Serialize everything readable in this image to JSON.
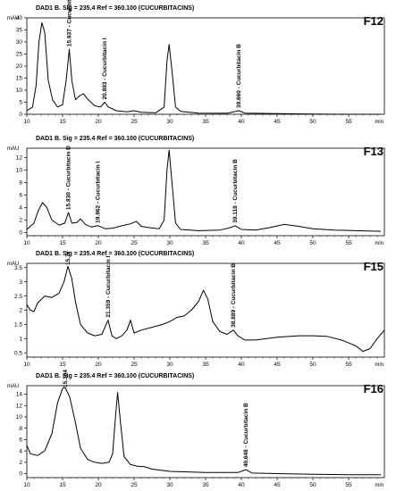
{
  "chart_data": [
    {
      "type": "line",
      "label": "F12",
      "header": "DAD1 B. Sig = 235.4   Ref = 360.100  (CUCURBITACINS)",
      "ylabel": "mAU",
      "xlabel": "min",
      "xlim": [
        10,
        60
      ],
      "ylim": [
        0,
        40
      ],
      "yticks": [
        0,
        5,
        10,
        15,
        20,
        25,
        30,
        35,
        40
      ],
      "xticks": [
        10,
        15,
        20,
        25,
        30,
        35,
        40,
        45,
        50,
        55
      ],
      "annotations": [
        {
          "x": 15.937,
          "y": 27,
          "text": "15.937 - Cucurbitacin D"
        },
        {
          "x": 20.893,
          "y": 5,
          "text": "20.893 - Cucurbitacin I"
        },
        {
          "x": 39.66,
          "y": 1.5,
          "text": "39.660 - Cucurbitacin B"
        }
      ],
      "series": [
        {
          "points": [
            [
              10,
              1.5
            ],
            [
              10.8,
              3
            ],
            [
              11.3,
              12
            ],
            [
              11.7,
              30
            ],
            [
              12.1,
              38
            ],
            [
              12.5,
              34
            ],
            [
              13,
              14
            ],
            [
              13.6,
              6
            ],
            [
              14.3,
              3
            ],
            [
              15,
              4
            ],
            [
              15.5,
              14
            ],
            [
              15.937,
              27
            ],
            [
              16.3,
              14
            ],
            [
              16.8,
              6
            ],
            [
              17.3,
              7.5
            ],
            [
              17.9,
              8.5
            ],
            [
              18.6,
              6
            ],
            [
              19.5,
              3.5
            ],
            [
              20.3,
              3
            ],
            [
              20.893,
              5
            ],
            [
              21.4,
              3
            ],
            [
              22.5,
              1.5
            ],
            [
              24,
              1
            ],
            [
              25,
              1.5
            ],
            [
              26,
              0.8
            ],
            [
              28,
              0.6
            ],
            [
              29.2,
              3
            ],
            [
              29.6,
              22
            ],
            [
              29.9,
              29
            ],
            [
              30.3,
              18
            ],
            [
              30.8,
              3
            ],
            [
              31.5,
              1.2
            ],
            [
              34,
              0.5
            ],
            [
              38,
              0.4
            ],
            [
              39.66,
              1.5
            ],
            [
              40.5,
              0.5
            ],
            [
              45,
              0.3
            ],
            [
              50,
              0.1
            ],
            [
              55,
              0
            ],
            [
              59.5,
              -0.1
            ]
          ]
        }
      ]
    },
    {
      "type": "line",
      "label": "F13",
      "header": "DAD1 B. Sig = 235.4   Ref = 360.100  (CUCURBITACINS)",
      "ylabel": "mAU",
      "xlabel": "min",
      "xlim": [
        10,
        60
      ],
      "ylim": [
        -0.5,
        13.5
      ],
      "yticks": [
        0,
        2,
        4,
        6,
        8,
        10,
        12
      ],
      "xticks": [
        10,
        15,
        20,
        25,
        30,
        35,
        40,
        45,
        50,
        55
      ],
      "annotations": [
        {
          "x": 15.83,
          "y": 3.2,
          "text": "15.830 - Cucurbitacin D"
        },
        {
          "x": 19.962,
          "y": 1.1,
          "text": "19.962 - Cucurbitacin I"
        },
        {
          "x": 39.118,
          "y": 1.1,
          "text": "39.118 - Cucurbitacin B"
        }
      ],
      "series": [
        {
          "points": [
            [
              10,
              0.5
            ],
            [
              11,
              1.5
            ],
            [
              11.6,
              3.5
            ],
            [
              12.2,
              4.8
            ],
            [
              12.8,
              4
            ],
            [
              13.5,
              2
            ],
            [
              14.5,
              1.2
            ],
            [
              15.3,
              1.5
            ],
            [
              15.83,
              3.2
            ],
            [
              16.3,
              1.5
            ],
            [
              17,
              1.6
            ],
            [
              17.5,
              2.2
            ],
            [
              18.2,
              1.3
            ],
            [
              19,
              0.9
            ],
            [
              19.962,
              1.1
            ],
            [
              21,
              0.6
            ],
            [
              22,
              0.7
            ],
            [
              23,
              1
            ],
            [
              24.5,
              1.4
            ],
            [
              25.3,
              1.8
            ],
            [
              26,
              1
            ],
            [
              27,
              0.8
            ],
            [
              28.5,
              0.6
            ],
            [
              29.2,
              2
            ],
            [
              29.6,
              10
            ],
            [
              29.9,
              13.2
            ],
            [
              30.3,
              8
            ],
            [
              30.8,
              1.5
            ],
            [
              31.5,
              0.5
            ],
            [
              34,
              0.3
            ],
            [
              37,
              0.4
            ],
            [
              38.5,
              0.8
            ],
            [
              39.118,
              1.1
            ],
            [
              40,
              0.5
            ],
            [
              42,
              0.4
            ],
            [
              44,
              0.8
            ],
            [
              46,
              1.3
            ],
            [
              48,
              1
            ],
            [
              50,
              0.6
            ],
            [
              53,
              0.4
            ],
            [
              56,
              0.3
            ],
            [
              59.5,
              0.2
            ]
          ]
        }
      ]
    },
    {
      "type": "line",
      "label": "F15",
      "header": "DAD1 B. Sig = 235.4   Ref = 360.100  (CUCURBITACINS)",
      "ylabel": "mAU",
      "xlabel": "min",
      "xlim": [
        10,
        60
      ],
      "ylim": [
        0.35,
        3.65
      ],
      "yticks": [
        0.5,
        1,
        1.5,
        2,
        2.5,
        3,
        3.5
      ],
      "xticks": [
        10,
        15,
        20,
        25,
        30,
        35,
        40,
        45,
        50,
        55
      ],
      "annotations": [
        {
          "x": 15.749,
          "y": 3.55,
          "text": "15.749 - Cucurbitacin D"
        },
        {
          "x": 21.359,
          "y": 1.65,
          "text": "21.359 - Cucurbitacin I"
        },
        {
          "x": 38.889,
          "y": 1.3,
          "text": "38.889 - Cucurbitacin B"
        }
      ],
      "series": [
        {
          "points": [
            [
              10,
              2.2
            ],
            [
              10.5,
              2
            ],
            [
              11,
              1.95
            ],
            [
              11.5,
              2.25
            ],
            [
              12.5,
              2.5
            ],
            [
              13.5,
              2.45
            ],
            [
              14.5,
              2.6
            ],
            [
              15.2,
              3
            ],
            [
              15.749,
              3.55
            ],
            [
              16.3,
              3.1
            ],
            [
              16.8,
              2.3
            ],
            [
              17.5,
              1.5
            ],
            [
              18.5,
              1.2
            ],
            [
              19.5,
              1.1
            ],
            [
              20.5,
              1.15
            ],
            [
              21.359,
              1.65
            ],
            [
              21.9,
              1.1
            ],
            [
              22.5,
              1
            ],
            [
              23.3,
              1.1
            ],
            [
              24,
              1.3
            ],
            [
              24.5,
              1.65
            ],
            [
              25,
              1.2
            ],
            [
              26,
              1.3
            ],
            [
              27.5,
              1.4
            ],
            [
              29,
              1.5
            ],
            [
              30,
              1.6
            ],
            [
              31,
              1.75
            ],
            [
              32,
              1.8
            ],
            [
              33,
              2
            ],
            [
              34,
              2.3
            ],
            [
              34.7,
              2.7
            ],
            [
              35.3,
              2.4
            ],
            [
              36,
              1.6
            ],
            [
              37,
              1.25
            ],
            [
              38,
              1.15
            ],
            [
              38.889,
              1.3
            ],
            [
              39.5,
              1.1
            ],
            [
              40.5,
              0.95
            ],
            [
              42,
              0.95
            ],
            [
              45,
              1.05
            ],
            [
              48,
              1.1
            ],
            [
              50,
              1.1
            ],
            [
              52,
              1.08
            ],
            [
              54,
              0.95
            ],
            [
              56,
              0.75
            ],
            [
              57,
              0.55
            ],
            [
              58,
              0.65
            ],
            [
              59,
              1
            ],
            [
              60,
              1.3
            ]
          ]
        }
      ]
    },
    {
      "type": "line",
      "label": "F16",
      "header": "DAD1 B. Sig = 235.4   Ref = 360.100  (CUCURBITACINS)",
      "ylabel": "mAU",
      "xlabel": "min",
      "xlim": [
        10,
        60
      ],
      "ylim": [
        -0.7,
        15.5
      ],
      "yticks": [
        0,
        2,
        4,
        6,
        8,
        10,
        12,
        14
      ],
      "xticks": [
        10,
        15,
        20,
        25,
        30,
        35,
        40,
        45,
        50,
        55
      ],
      "annotations": [
        {
          "x": 15.354,
          "y": 15.2,
          "text": "15.354 - Cucurbitacin D"
        },
        {
          "x": 40.648,
          "y": 0.7,
          "text": "40.648 - Cucurbitacin B"
        }
      ],
      "series": [
        {
          "points": [
            [
              10,
              5
            ],
            [
              10.5,
              3.5
            ],
            [
              11.5,
              3.2
            ],
            [
              12.5,
              4
            ],
            [
              13.5,
              7
            ],
            [
              14.3,
              12.5
            ],
            [
              15,
              15
            ],
            [
              15.354,
              15.2
            ],
            [
              16,
              13.5
            ],
            [
              16.8,
              9
            ],
            [
              17.5,
              4.5
            ],
            [
              18.5,
              2.5
            ],
            [
              19.5,
              2
            ],
            [
              20.5,
              1.8
            ],
            [
              21.5,
              2
            ],
            [
              22,
              3.5
            ],
            [
              22.4,
              10
            ],
            [
              22.7,
              14.3
            ],
            [
              23.1,
              9
            ],
            [
              23.6,
              3
            ],
            [
              24.5,
              1.6
            ],
            [
              25.5,
              1.3
            ],
            [
              26.5,
              1.2
            ],
            [
              27.5,
              0.8
            ],
            [
              30,
              0.4
            ],
            [
              35,
              0.2
            ],
            [
              39.5,
              0.2
            ],
            [
              40.648,
              0.7
            ],
            [
              41.5,
              0.1
            ],
            [
              45,
              0
            ],
            [
              50,
              -0.1
            ],
            [
              55,
              -0.2
            ],
            [
              59.5,
              -0.2
            ]
          ]
        }
      ]
    }
  ]
}
